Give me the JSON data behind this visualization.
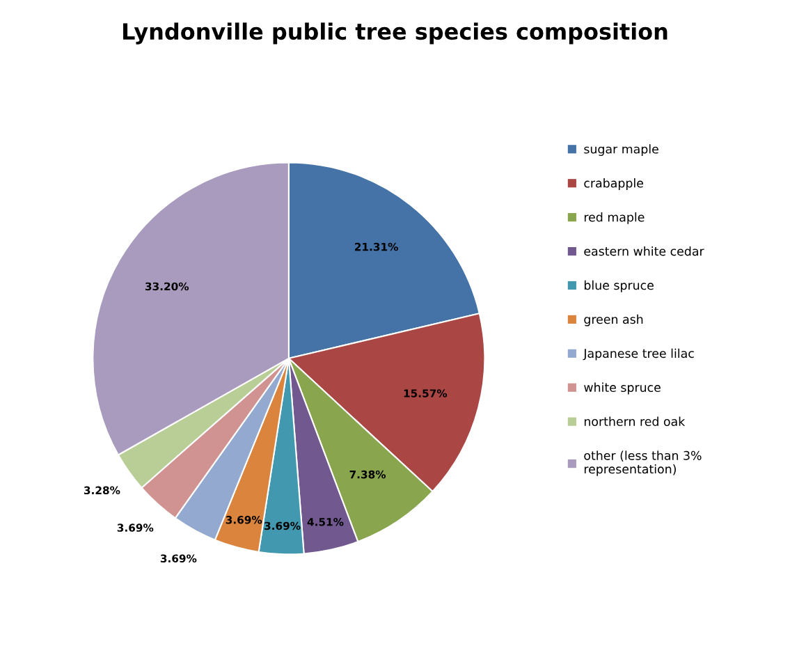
{
  "chart_data": {
    "type": "pie",
    "title": "Lyndonville public tree species composition",
    "categories": [
      "sugar maple",
      "crabapple",
      "red maple",
      "eastern white cedar",
      "blue spruce",
      "green ash",
      "Japanese tree lilac",
      "white spruce",
      "northern red oak",
      "other (less than 3% representation)"
    ],
    "values": [
      21.31,
      15.57,
      7.38,
      4.51,
      3.69,
      3.69,
      3.69,
      3.69,
      3.28,
      33.2
    ],
    "value_labels": [
      "21.31%",
      "15.57%",
      "7.38%",
      "4.51%",
      "3.69%",
      "3.69%",
      "3.69%",
      "3.69%",
      "3.28%",
      "33.20%"
    ],
    "colors": [
      "#4572a7",
      "#aa4643",
      "#89a54e",
      "#71588f",
      "#4198af",
      "#db843d",
      "#93a9cf",
      "#d19392",
      "#b9cd96",
      "#a99bbd"
    ],
    "legend": "right"
  }
}
